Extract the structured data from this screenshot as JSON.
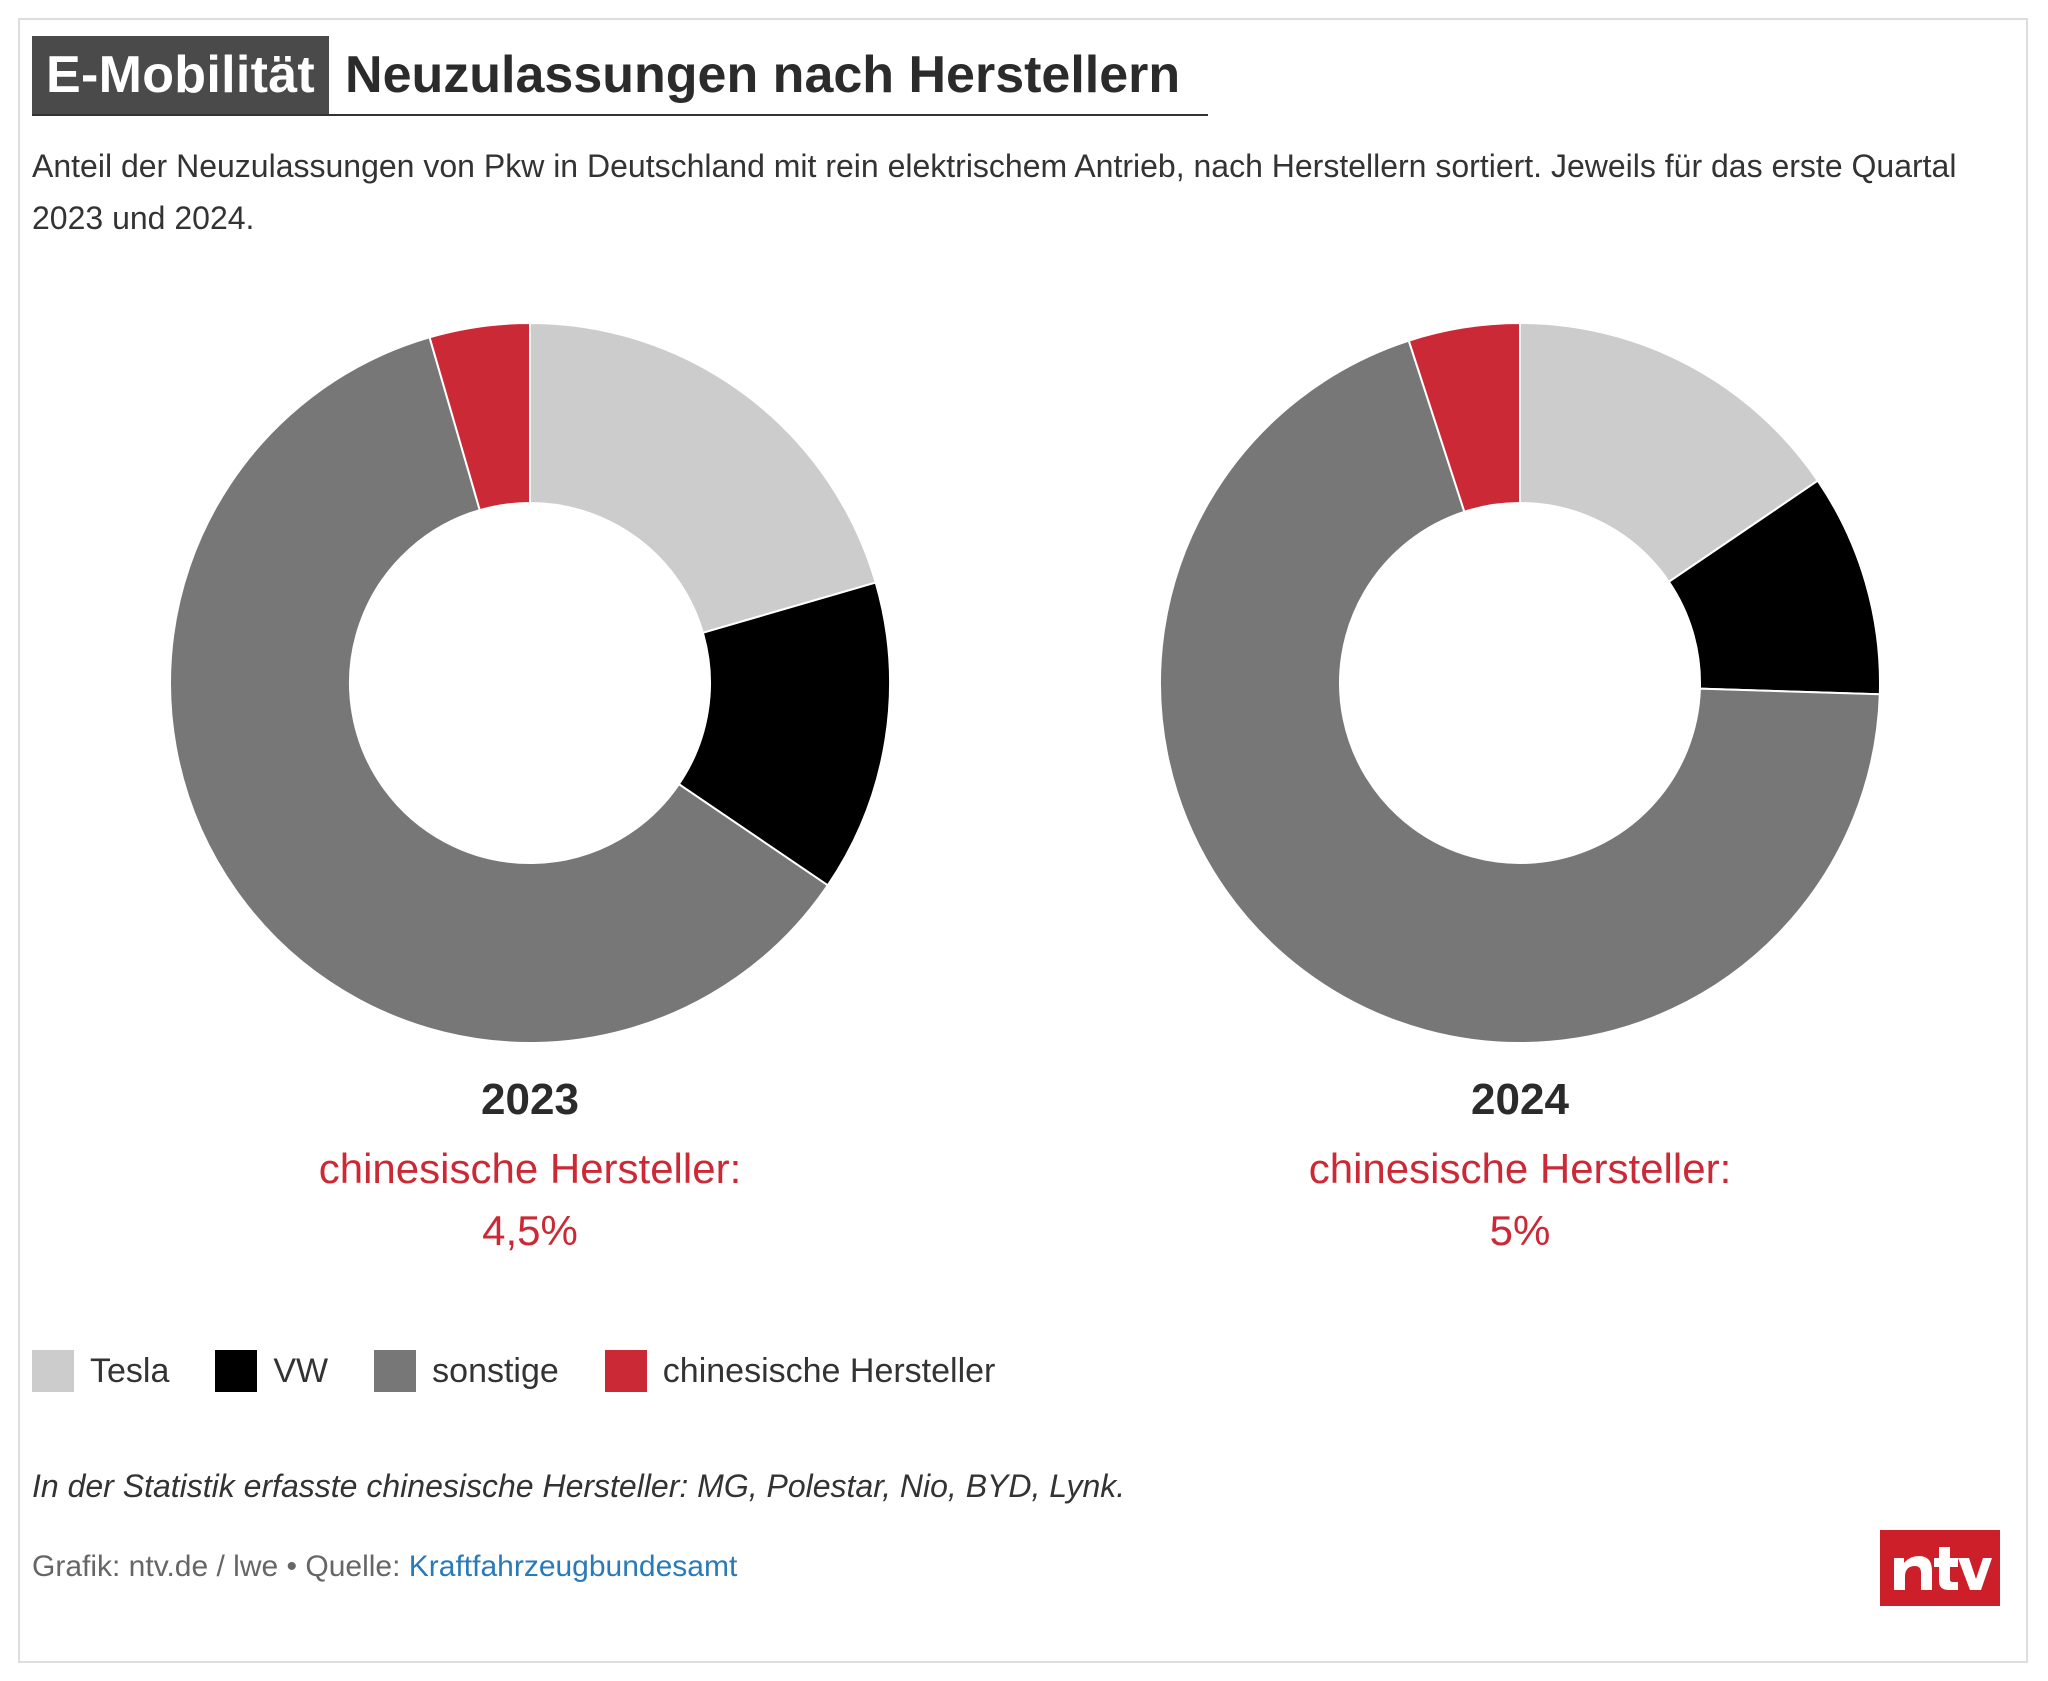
{
  "header": {
    "kicker": "E-Mobilität",
    "title": "Neuzulassungen nach Herstellern",
    "subtitle": "Anteil der Neuzulassungen von Pkw in Deutschland mit rein elektrischem Antrieb, nach Herstellern sortiert. Jeweils für das erste Quartal 2023 und 2024."
  },
  "colors": {
    "Tesla": "#cccccc",
    "VW": "#000000",
    "sonstige": "#777777",
    "chinesische Hersteller": "#cc2936"
  },
  "chart_data": [
    {
      "type": "pie",
      "variant": "donut",
      "year": "2023",
      "categories": [
        "Tesla",
        "VW",
        "sonstige",
        "chinesische Hersteller"
      ],
      "values": [
        20.5,
        14.0,
        61.0,
        4.5
      ],
      "annotation_label": "chinesische Hersteller:",
      "annotation_value": "4,5%"
    },
    {
      "type": "pie",
      "variant": "donut",
      "year": "2024",
      "categories": [
        "Tesla",
        "VW",
        "sonstige",
        "chinesische Hersteller"
      ],
      "values": [
        15.5,
        10.0,
        69.5,
        5.0
      ],
      "annotation_label": "chinesische Hersteller:",
      "annotation_value": "5%"
    }
  ],
  "legend": {
    "items": [
      {
        "label": "Tesla",
        "color": "#cccccc"
      },
      {
        "label": "VW",
        "color": "#000000"
      },
      {
        "label": "sonstige",
        "color": "#777777"
      },
      {
        "label": "chinesische Hersteller",
        "color": "#cc2936"
      }
    ]
  },
  "footer": {
    "note": "In der Statistik erfasste chinesische Hersteller: MG, Polestar, Nio, BYD, Lynk.",
    "credit_prefix": "Grafik: ntv.de / lwe • Quelle: ",
    "source_link": "Kraftfahrzeugbundesamt",
    "logo_text": "ntv"
  }
}
